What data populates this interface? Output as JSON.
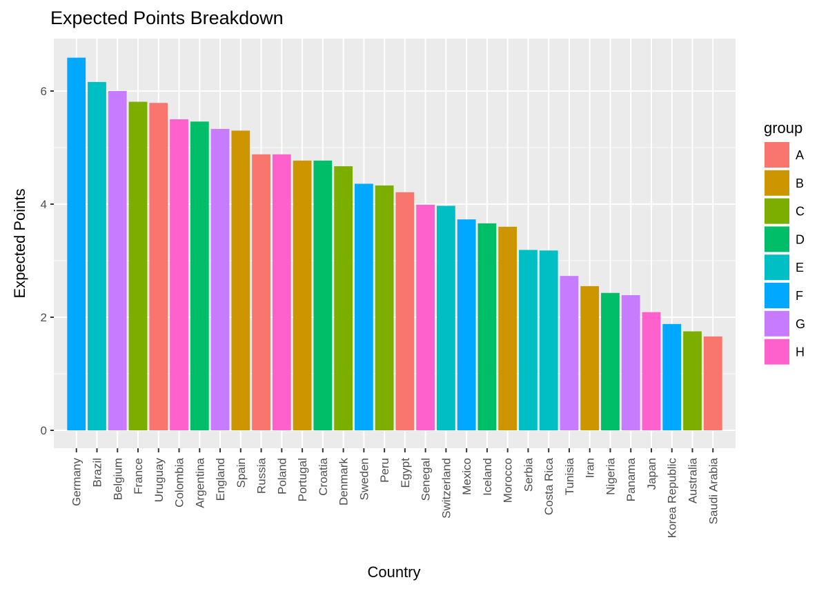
{
  "chart_data": {
    "type": "bar",
    "title": "Expected Points Breakdown",
    "xlabel": "Country",
    "ylabel": "Expected Points",
    "ylim": [
      0,
      6.9
    ],
    "yticks": [
      0,
      2,
      4,
      6
    ],
    "grid": true,
    "legend": {
      "title": "group",
      "placement": "right",
      "entries": [
        {
          "label": "A",
          "color": "#F8766D"
        },
        {
          "label": "B",
          "color": "#CD9600"
        },
        {
          "label": "C",
          "color": "#7CAE00"
        },
        {
          "label": "D",
          "color": "#00BE67"
        },
        {
          "label": "E",
          "color": "#00BFC4"
        },
        {
          "label": "F",
          "color": "#00A9FF"
        },
        {
          "label": "G",
          "color": "#C77CFF"
        },
        {
          "label": "H",
          "color": "#FF61CC"
        }
      ]
    },
    "categories": [
      "Germany",
      "Brazil",
      "Belgium",
      "France",
      "Uruguay",
      "Colombia",
      "Argentina",
      "England",
      "Spain",
      "Russia",
      "Poland",
      "Portugal",
      "Croatia",
      "Denmark",
      "Sweden",
      "Peru",
      "Egypt",
      "Senegal",
      "Switzerland",
      "Mexico",
      "Iceland",
      "Morocco",
      "Serbia",
      "Costa Rica",
      "Tunisia",
      "Iran",
      "Nigeria",
      "Panama",
      "Japan",
      "Korea Republic",
      "Australia",
      "Saudi Arabia"
    ],
    "values": [
      6.59,
      6.16,
      6.0,
      5.81,
      5.79,
      5.5,
      5.46,
      5.33,
      5.3,
      4.88,
      4.88,
      4.77,
      4.77,
      4.67,
      4.36,
      4.33,
      4.21,
      3.99,
      3.97,
      3.73,
      3.66,
      3.6,
      3.19,
      3.18,
      2.73,
      2.55,
      2.43,
      2.39,
      2.09,
      1.88,
      1.75,
      1.66
    ],
    "groups": [
      "F",
      "E",
      "G",
      "C",
      "A",
      "H",
      "D",
      "G",
      "B",
      "A",
      "H",
      "B",
      "D",
      "C",
      "F",
      "C",
      "A",
      "H",
      "E",
      "F",
      "D",
      "B",
      "E",
      "E",
      "G",
      "B",
      "D",
      "G",
      "H",
      "F",
      "C",
      "A"
    ]
  }
}
